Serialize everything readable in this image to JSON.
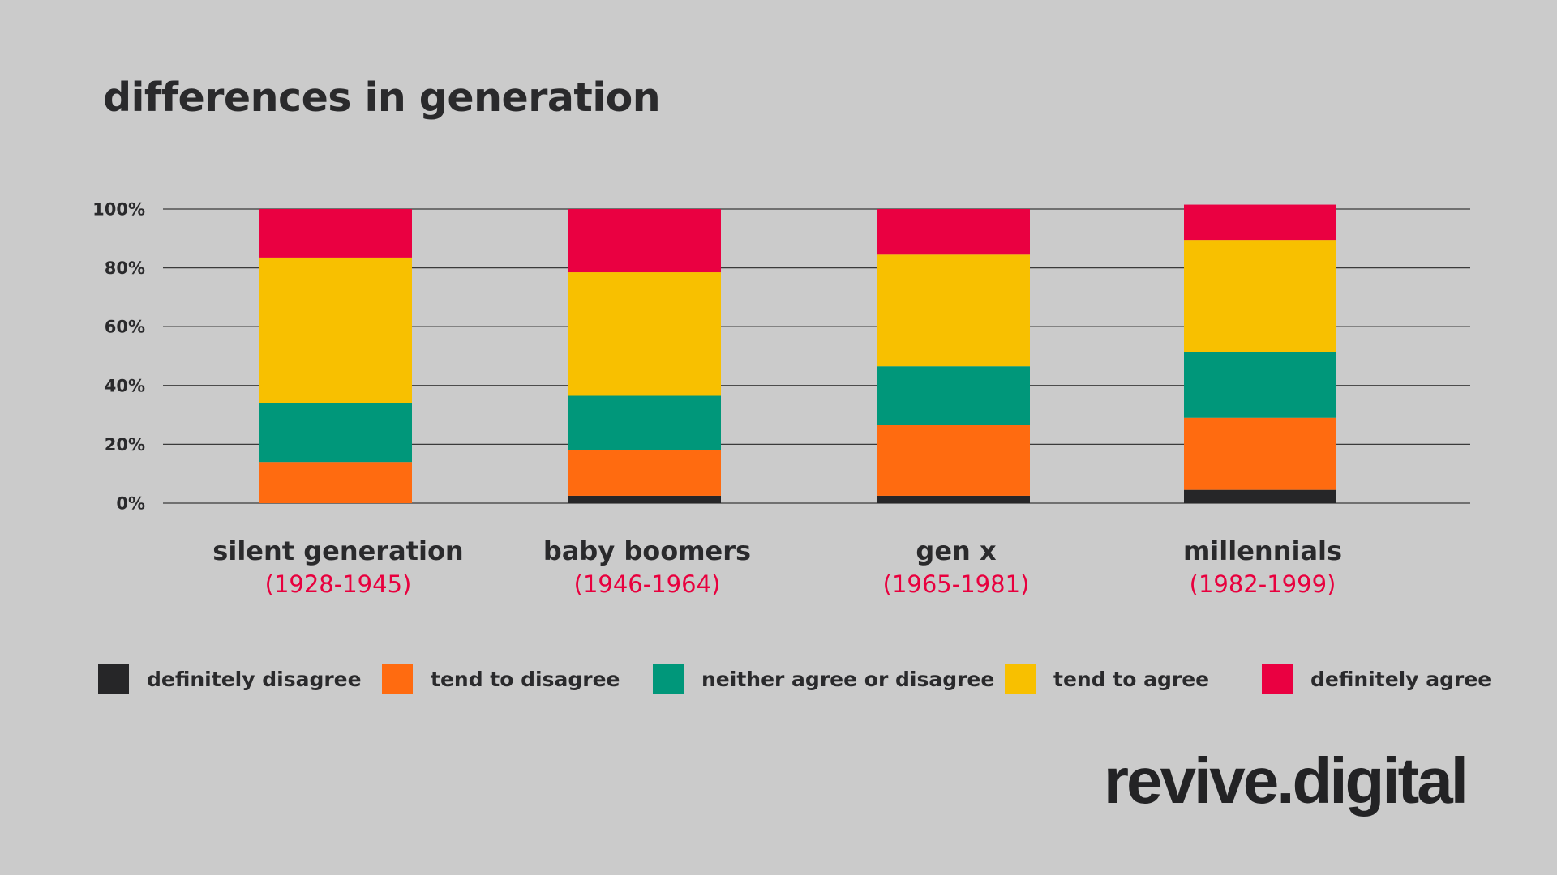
{
  "brand": "revive.digital",
  "colors": {
    "background": "#cbcbcb",
    "text": "#2a2a2c",
    "gridline": "#3a3a3a",
    "accent": "#e8003e"
  },
  "chart_data": {
    "type": "bar",
    "stacked": true,
    "title": "differences in generation",
    "xlabel": "",
    "ylabel": "",
    "ylim": [
      0,
      100
    ],
    "y_ticks": [
      "0%",
      "20%",
      "40%",
      "60%",
      "80%",
      "100%"
    ],
    "grid": true,
    "legend_position": "bottom",
    "categories": [
      "silent generation",
      "baby boomers",
      "gen x",
      "millennials"
    ],
    "category_subtitles": [
      "(1928-1945)",
      "(1946-1964)",
      "(1965-1981)",
      "(1982-1999)"
    ],
    "series": [
      {
        "name": "definitely disagree",
        "color": "#262628",
        "values": [
          0,
          2.5,
          2.5,
          4.5
        ]
      },
      {
        "name": "tend to disagree",
        "color": "#ff6b10",
        "values": [
          14,
          15.5,
          24,
          24.5
        ]
      },
      {
        "name": "neither agree or disagree",
        "color": "#00977a",
        "values": [
          20,
          18.5,
          20,
          22.5
        ]
      },
      {
        "name": "tend to agree",
        "color": "#f8c000",
        "values": [
          49.5,
          42,
          38,
          38
        ]
      },
      {
        "name": "definitely agree",
        "color": "#ea0041",
        "values": [
          16.5,
          21.5,
          15.5,
          12
        ]
      }
    ]
  }
}
